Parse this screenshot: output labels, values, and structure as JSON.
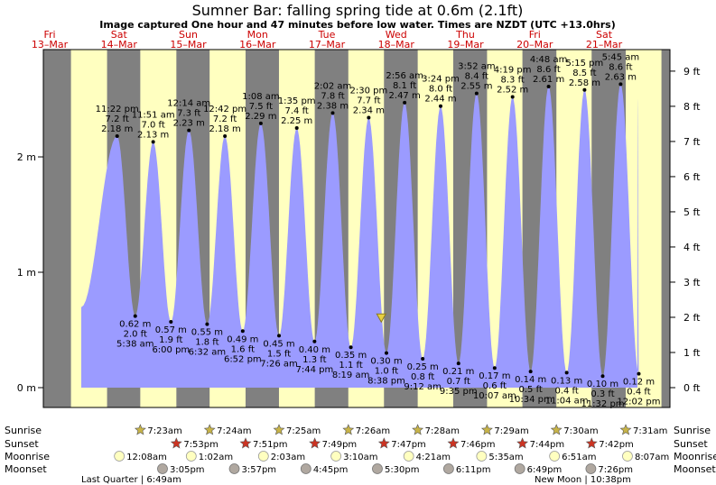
{
  "title": "Sumner Bar: falling  spring tide at 0.6m (2.1ft)",
  "subtitle": "Image captured One hour and 47 minutes before low water. Times are NZDT (UTC +13.0hrs)",
  "colors": {
    "night": "#808080",
    "day": "#ffffc0",
    "tide": "#9b9bff",
    "date_text": "#cc0000",
    "sunrise_star": "#c8b448",
    "sunset_star": "#cc3322",
    "moonrise": "#ffffc0",
    "moonset": "#b0a8a0"
  },
  "days": [
    {
      "weekday": "Fri",
      "date": "13–Mar"
    },
    {
      "weekday": "Sat",
      "date": "14–Mar"
    },
    {
      "weekday": "Sun",
      "date": "15–Mar"
    },
    {
      "weekday": "Mon",
      "date": "16–Mar"
    },
    {
      "weekday": "Tue",
      "date": "17–Mar"
    },
    {
      "weekday": "Wed",
      "date": "18–Mar"
    },
    {
      "weekday": "Thu",
      "date": "19–Mar"
    },
    {
      "weekday": "Fri",
      "date": "20–Mar"
    },
    {
      "weekday": "Sat",
      "date": "21–Mar"
    }
  ],
  "chart_data": {
    "type": "area",
    "x_unit": "NZDT time",
    "y_unit": "m",
    "ylim": [
      -0.08,
      2.93
    ],
    "y_ticks_m": [
      {
        "value": 0,
        "label": "0 m"
      },
      {
        "value": 1,
        "label": "1 m"
      },
      {
        "value": 2,
        "label": "2 m"
      }
    ],
    "y_ticks_ft": [
      {
        "value": 0,
        "label": "0 ft"
      },
      {
        "value": 1,
        "label": "1 ft"
      },
      {
        "value": 2,
        "label": "2 ft"
      },
      {
        "value": 3,
        "label": "3 ft"
      },
      {
        "value": 4,
        "label": "4 ft"
      },
      {
        "value": 5,
        "label": "5 ft"
      },
      {
        "value": 6,
        "label": "6 ft"
      },
      {
        "value": 7,
        "label": "7 ft"
      },
      {
        "value": 8,
        "label": "8 ft"
      },
      {
        "value": 9,
        "label": "9 ft"
      }
    ],
    "tides": [
      {
        "type": "high",
        "day": 0,
        "time": "11:22 pm",
        "ft": "7.2 ft",
        "m": 2.18
      },
      {
        "type": "low",
        "day": 1,
        "time": "5:38 am",
        "ft": "2.0 ft",
        "m": 0.62
      },
      {
        "type": "high",
        "day": 1,
        "time": "11:51 am",
        "ft": "7.0 ft",
        "m": 2.13
      },
      {
        "type": "low",
        "day": 1,
        "time": "6:00 pm",
        "ft": "1.9 ft",
        "m": 0.57
      },
      {
        "type": "high",
        "day": 2,
        "time": "12:14 am",
        "ft": "7.3 ft",
        "m": 2.23
      },
      {
        "type": "low",
        "day": 2,
        "time": "6:32 am",
        "ft": "1.8 ft",
        "m": 0.55
      },
      {
        "type": "high",
        "day": 2,
        "time": "12:42 pm",
        "ft": "7.2 ft",
        "m": 2.18
      },
      {
        "type": "low",
        "day": 2,
        "time": "6:52 pm",
        "ft": "1.6 ft",
        "m": 0.49
      },
      {
        "type": "high",
        "day": 3,
        "time": "1:08 am",
        "ft": "7.5 ft",
        "m": 2.29
      },
      {
        "type": "low",
        "day": 3,
        "time": "7:26 am",
        "ft": "1.5 ft",
        "m": 0.45
      },
      {
        "type": "high",
        "day": 3,
        "time": "1:35 pm",
        "ft": "7.4 ft",
        "m": 2.25
      },
      {
        "type": "low",
        "day": 3,
        "time": "7:44 pm",
        "ft": "1.3 ft",
        "m": 0.4
      },
      {
        "type": "high",
        "day": 4,
        "time": "2:02 am",
        "ft": "7.8 ft",
        "m": 2.38
      },
      {
        "type": "low",
        "day": 4,
        "time": "8:19 am",
        "ft": "1.1 ft",
        "m": 0.35
      },
      {
        "type": "high",
        "day": 4,
        "time": "2:30 pm",
        "ft": "7.7 ft",
        "m": 2.34
      },
      {
        "type": "low",
        "day": 4,
        "time": "8:38 pm",
        "ft": "1.0 ft",
        "m": 0.3
      },
      {
        "type": "high",
        "day": 5,
        "time": "2:56 am",
        "ft": "8.1 ft",
        "m": 2.47
      },
      {
        "type": "low",
        "day": 5,
        "time": "9:12 am",
        "ft": "0.8 ft",
        "m": 0.25
      },
      {
        "type": "high",
        "day": 5,
        "time": "3:24 pm",
        "ft": "8.0 ft",
        "m": 2.44
      },
      {
        "type": "low",
        "day": 5,
        "time": "9:35 pm",
        "ft": "0.7 ft",
        "m": 0.21
      },
      {
        "type": "high",
        "day": 6,
        "time": "3:52 am",
        "ft": "8.4 ft",
        "m": 2.55
      },
      {
        "type": "low",
        "day": 6,
        "time": "10:07 am",
        "ft": "0.6 ft",
        "m": 0.17
      },
      {
        "type": "high",
        "day": 6,
        "time": "4:19 pm",
        "ft": "8.3 ft",
        "m": 2.52
      },
      {
        "type": "low",
        "day": 6,
        "time": "10:34 pm",
        "ft": "0.5 ft",
        "m": 0.14
      },
      {
        "type": "high",
        "day": 7,
        "time": "4:48 am",
        "ft": "8.6 ft",
        "m": 2.61
      },
      {
        "type": "low",
        "day": 7,
        "time": "11:04 am",
        "ft": "0.4 ft",
        "m": 0.13
      },
      {
        "type": "high",
        "day": 7,
        "time": "5:15 pm",
        "ft": "8.5 ft",
        "m": 2.58
      },
      {
        "type": "low",
        "day": 7,
        "time": "11:32 pm",
        "ft": "0.3 ft",
        "m": 0.1
      },
      {
        "type": "high",
        "day": 8,
        "time": "5:45 am",
        "ft": "8.6 ft",
        "m": 2.63
      },
      {
        "type": "low",
        "day": 8,
        "time": "12:02 pm",
        "ft": "0.4 ft",
        "m": 0.12
      }
    ],
    "current_marker": {
      "day": 4,
      "time": "6:51 pm",
      "m": 0.6
    }
  },
  "bottom_rows": {
    "sunrise_label": "Sunrise",
    "sunset_label": "Sunset",
    "moonrise_label": "Moonrise",
    "moonset_label": "Moonset",
    "sunrise": [
      {
        "day": 1,
        "time": "7:23am"
      },
      {
        "day": 2,
        "time": "7:24am"
      },
      {
        "day": 3,
        "time": "7:25am"
      },
      {
        "day": 4,
        "time": "7:26am"
      },
      {
        "day": 5,
        "time": "7:28am"
      },
      {
        "day": 6,
        "time": "7:29am"
      },
      {
        "day": 7,
        "time": "7:30am"
      },
      {
        "day": 8,
        "time": "7:31am"
      }
    ],
    "sunset": [
      {
        "day": 1,
        "time": "7:53pm"
      },
      {
        "day": 2,
        "time": "7:51pm"
      },
      {
        "day": 3,
        "time": "7:49pm"
      },
      {
        "day": 4,
        "time": "7:47pm"
      },
      {
        "day": 5,
        "time": "7:46pm"
      },
      {
        "day": 6,
        "time": "7:44pm"
      },
      {
        "day": 7,
        "time": "7:42pm"
      }
    ],
    "moonrise": [
      {
        "day": 1,
        "time": "12:08am"
      },
      {
        "day": 2,
        "time": "1:02am"
      },
      {
        "day": 3,
        "time": "2:03am"
      },
      {
        "day": 4,
        "time": "3:10am"
      },
      {
        "day": 5,
        "time": "4:21am"
      },
      {
        "day": 6,
        "time": "5:35am"
      },
      {
        "day": 7,
        "time": "6:51am"
      },
      {
        "day": 8,
        "time": "8:07am"
      }
    ],
    "moonset": [
      {
        "day": 1,
        "time": "3:05pm"
      },
      {
        "day": 2,
        "time": "3:57pm"
      },
      {
        "day": 3,
        "time": "4:45pm"
      },
      {
        "day": 4,
        "time": "5:30pm"
      },
      {
        "day": 5,
        "time": "6:11pm"
      },
      {
        "day": 6,
        "time": "6:49pm"
      },
      {
        "day": 7,
        "time": "7:26pm"
      }
    ],
    "moon_phases": [
      {
        "label": "Last Quarter",
        "time": "6:49am"
      },
      {
        "label": "New Moon",
        "time": "10:38pm"
      }
    ]
  }
}
